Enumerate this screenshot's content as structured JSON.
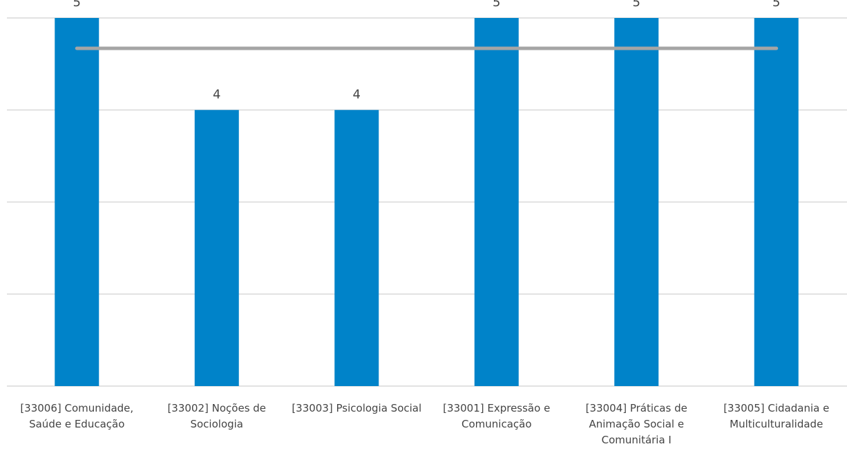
{
  "chart_data": {
    "type": "bar",
    "categories": [
      [
        "[33006] Comunidade,",
        "Saúde e Educação"
      ],
      [
        "[33002] Noções de",
        "Sociologia"
      ],
      [
        "[33003] Psicologia Social"
      ],
      [
        "[33001] Expressão e",
        "Comunicação"
      ],
      [
        "[33004] Práticas de",
        "Animação Social e",
        "Comunitária I"
      ],
      [
        "[33005] Cidadania e",
        "Multiculturalidade"
      ]
    ],
    "values": [
      5,
      4,
      4,
      5,
      5,
      5
    ],
    "data_labels": [
      "5",
      "4",
      "4",
      "5",
      "5",
      "5"
    ],
    "reference_line": {
      "value": 4.67,
      "color": "#a5a5a5"
    },
    "ylim": [
      1,
      5
    ],
    "grid": true,
    "legend": "none",
    "title": "",
    "xlabel": "",
    "ylabel": "",
    "colors": {
      "bar": "#0083c9",
      "grid": "#d9d9d9",
      "text": "#444444",
      "reference_line": "#a5a5a5"
    }
  }
}
